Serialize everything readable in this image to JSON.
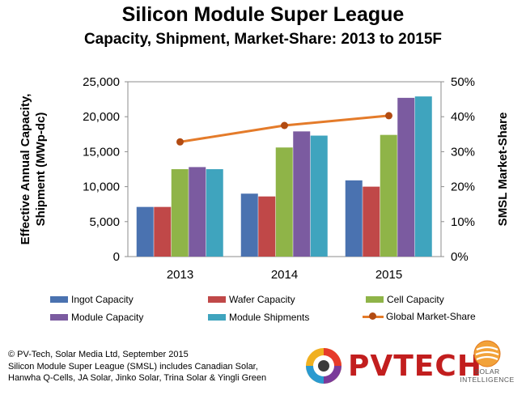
{
  "title": "Silicon Module Super League",
  "subtitle": "Capacity, Shipment, Market-Share: 2013 to 2015F",
  "chart_data": {
    "type": "bar",
    "categories": [
      "2013",
      "2014",
      "2015"
    ],
    "series": [
      {
        "name": "Ingot Capacity",
        "color": "#4a72b0",
        "values": [
          7100,
          9000,
          10900
        ]
      },
      {
        "name": "Wafer Capacity",
        "color": "#c04848",
        "values": [
          7100,
          8600,
          10000
        ]
      },
      {
        "name": "Cell Capacity",
        "color": "#8fb448",
        "values": [
          12500,
          15600,
          17400
        ]
      },
      {
        "name": "Module Capacity",
        "color": "#7b5ba0",
        "values": [
          12800,
          17900,
          22700
        ]
      },
      {
        "name": "Module Shipments",
        "color": "#3fa4be",
        "values": [
          12500,
          17300,
          22900
        ]
      }
    ],
    "line_series": {
      "name": "Global Market-Share",
      "color": "#e47b2a",
      "marker_color": "#b24b12",
      "axis": "right",
      "values": [
        32.8,
        37.5,
        40.3
      ]
    },
    "ylabel": "Effective Annual Capacity, Shipment (MWp-dc)",
    "ylabel_lines": [
      "Effective Annual Capacity,",
      "Shipment (MWp-dc)"
    ],
    "y2label": "SMSL Market-Share",
    "ylim": [
      0,
      25000
    ],
    "y2lim": [
      0,
      50
    ],
    "yticks": [
      "0",
      "5,000",
      "10,000",
      "15,000",
      "20,000",
      "25,000"
    ],
    "y2ticks": [
      "0%",
      "10%",
      "20%",
      "30%",
      "40%",
      "50%"
    ],
    "legend_position": "bottom"
  },
  "source_lines": [
    "© PV-Tech, Solar Media Ltd, September 2015",
    "Silicon Module Super League (SMSL) includes Canadian Solar,",
    "Hanwha Q-Cells, JA Solar, Jinko Solar, Trina Solar & Yingli Green"
  ],
  "logo_pvtech": "PVTECH",
  "logo_si_lines": [
    "SOLAR",
    "INTELLIGENCE"
  ]
}
